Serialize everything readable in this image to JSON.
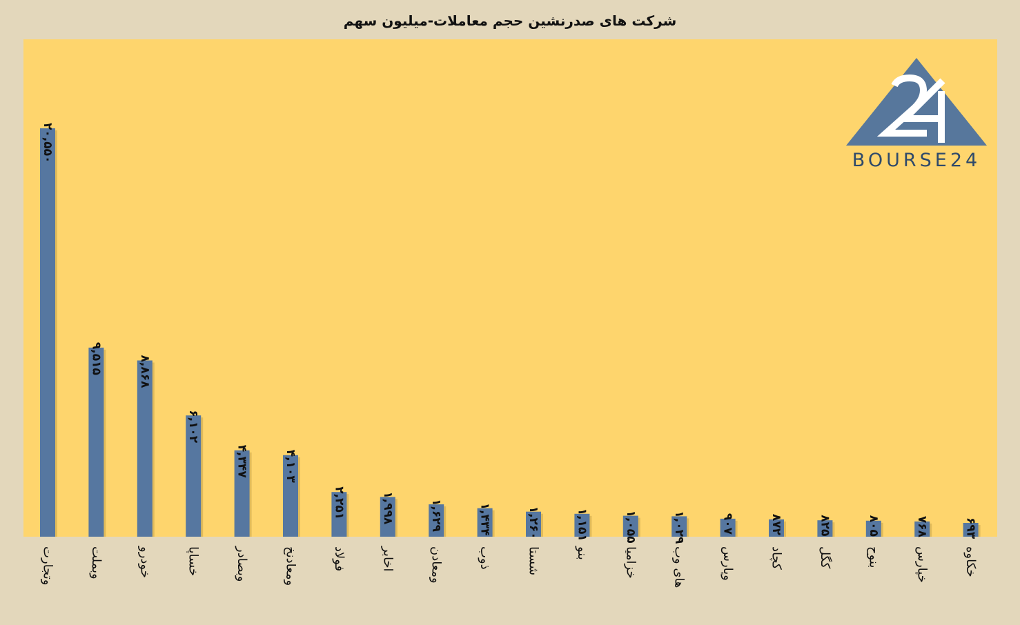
{
  "colors": {
    "background": "#e3d7bb",
    "plot_background": "#fed56d",
    "bar": "#5677a0",
    "bar_shadow": "#c9a54a",
    "logo_triangle": "#57779c",
    "logo_text": "#2f4a6a"
  },
  "logo": {
    "mark_icon": "bourse24-triangle-logo",
    "text": "BOURSE24"
  },
  "chart_data": {
    "type": "bar",
    "title": "شرکت های صدرنشین حجم معاملات-میلیون سهم",
    "xlabel": "",
    "ylabel": "",
    "ylim": [
      0,
      22000
    ],
    "grid": false,
    "legend": "none",
    "categories": [
      "وتجارت",
      "وبملت",
      "خودرو",
      "خساپا",
      "وبصادر",
      "ومعادنخ",
      "فولاد",
      "اخابر",
      "ومعادن",
      "ذوب",
      "شستا",
      "بنو",
      "خزامیا",
      "های وب",
      "وپارس",
      "کچاد",
      "کگل",
      "بنوح",
      "خپارس",
      "خکاوه"
    ],
    "values": [
      20550,
      9515,
      8868,
      6102,
      4347,
      4103,
      2251,
      1998,
      1629,
      1434,
      1260,
      1151,
      1055,
      1029,
      907,
      872,
      825,
      805,
      768,
      693
    ],
    "value_labels": [
      "۲۰,۵۵۰",
      "۹,۵۱۵",
      "۸,۸۶۸",
      "۶,۱۰۲",
      "۴,۳۴۷",
      "۴,۱۰۳",
      "۲,۲۵۱",
      "۱,۹۹۸",
      "۱,۶۲۹",
      "۱,۴۳۴",
      "۱,۲۶۰",
      "۱,۱۵۱",
      "۱,۰۵۵",
      "۱,۰۲۹",
      "۹۰۷",
      "۸۷۲",
      "۸۲۵",
      "۸۰۵",
      "۷۶۸",
      "۶۹۳"
    ]
  }
}
